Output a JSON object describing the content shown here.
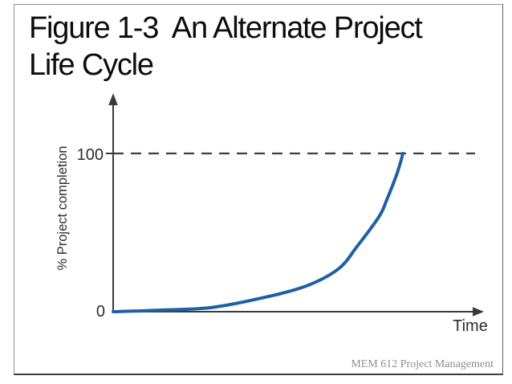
{
  "slide": {
    "title_line1": "Figure 1-3  An Alternate Project",
    "title_line2": "Life Cycle",
    "footer": "MEM 612 Project Management"
  },
  "chart_data": {
    "type": "line",
    "title": "Figure 1-3 An Alternate Project Life Cycle",
    "xlabel": "Time",
    "ylabel": "% Project completion",
    "ytick_labels": [
      "0",
      "100"
    ],
    "ylim": [
      0,
      115
    ],
    "x_range_normalized": [
      0,
      1
    ],
    "grid": false,
    "legend": false,
    "dashed_guide_y": 100,
    "axis_color": "#3a3a3a",
    "series": [
      {
        "name": "% project completion over time",
        "color": "#1f5fa6",
        "points": [
          {
            "t": 0.0,
            "pct": 0
          },
          {
            "t": 0.13,
            "pct": 1
          },
          {
            "t": 0.26,
            "pct": 2.5
          },
          {
            "t": 0.39,
            "pct": 8
          },
          {
            "t": 0.52,
            "pct": 16
          },
          {
            "t": 0.61,
            "pct": 27
          },
          {
            "t": 0.66,
            "pct": 41
          },
          {
            "t": 0.72,
            "pct": 60
          },
          {
            "t": 0.74,
            "pct": 70
          },
          {
            "t": 0.77,
            "pct": 88
          },
          {
            "t": 0.785,
            "pct": 100
          }
        ]
      }
    ]
  }
}
